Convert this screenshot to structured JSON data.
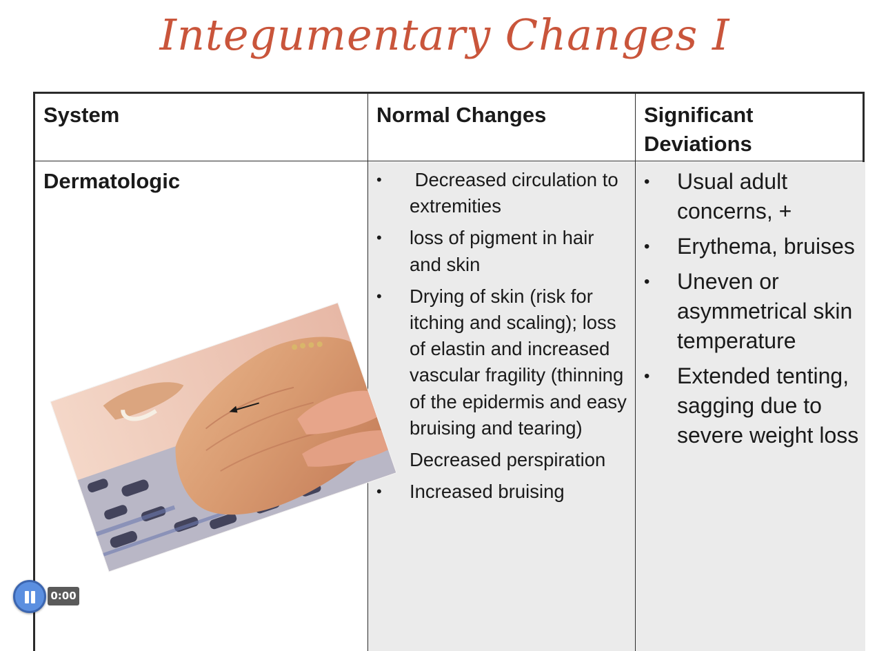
{
  "title": "Integumentary Changes I",
  "table": {
    "headers": {
      "system": "System",
      "normal": "Normal Changes",
      "deviations": "Significant Deviations"
    },
    "row": {
      "system": "Dermatologic",
      "normal_changes": [
        " Decreased circulation to extremities",
        "loss of pigment in hair and skin",
        "Drying of skin (risk for itching and scaling); loss of elastin and increased vascular fragility (thinning of the epidermis and easy bruising and tearing)",
        "Decreased perspiration",
        "Increased bruising"
      ],
      "significant_deviations": [
        "Usual adult concerns, +",
        "Erythema, bruises",
        "Uneven or asymmetrical skin temperature",
        "Extended tenting, sagging due to severe weight loss"
      ]
    },
    "bullet": "•"
  },
  "photo": {
    "subject": "aged-hand-skin-photo"
  },
  "media_player": {
    "time": "0:00",
    "state": "paused",
    "accent": "#5b8fe0"
  },
  "colors": {
    "title": "#c9553b",
    "border": "#2a2a2a",
    "cell_shade": "#ebebeb"
  }
}
